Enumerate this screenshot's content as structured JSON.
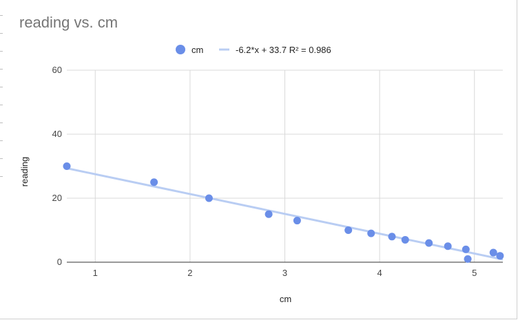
{
  "chart_data": {
    "type": "scatter",
    "title": "reading vs. cm",
    "xlabel": "cm",
    "ylabel": "reading",
    "xlim": [
      0.7,
      5.3
    ],
    "ylim": [
      0,
      60
    ],
    "x_ticks": [
      1,
      2,
      3,
      4,
      5
    ],
    "y_ticks": [
      0,
      20,
      40,
      60
    ],
    "grid": true,
    "legend_position": "top",
    "series": [
      {
        "name": "cm",
        "color": "#6a8ee8",
        "points": [
          {
            "x": 0.7,
            "y": 30
          },
          {
            "x": 1.62,
            "y": 25
          },
          {
            "x": 2.2,
            "y": 20
          },
          {
            "x": 2.83,
            "y": 15
          },
          {
            "x": 3.13,
            "y": 13
          },
          {
            "x": 3.67,
            "y": 10
          },
          {
            "x": 3.91,
            "y": 9
          },
          {
            "x": 4.13,
            "y": 8
          },
          {
            "x": 4.27,
            "y": 7
          },
          {
            "x": 4.52,
            "y": 6
          },
          {
            "x": 4.72,
            "y": 5
          },
          {
            "x": 4.91,
            "y": 4
          },
          {
            "x": 4.93,
            "y": 1
          },
          {
            "x": 5.2,
            "y": 3
          },
          {
            "x": 5.27,
            "y": 2
          }
        ]
      }
    ],
    "trendline": {
      "label": "-6.2*x + 33.7 R² = 0.986",
      "slope": -6.2,
      "intercept": 33.7,
      "color": "#b9cdf3"
    }
  }
}
